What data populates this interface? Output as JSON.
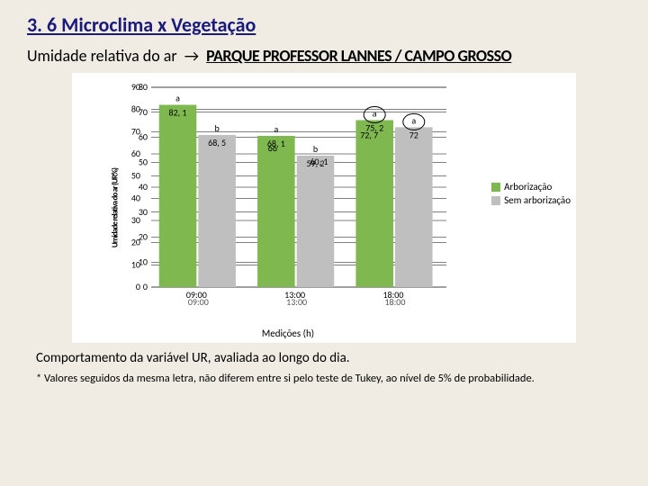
{
  "header": {
    "section": "3. 6  Microclima x Vegetação",
    "variable": "Umidade relativa do ar",
    "arrow": "→",
    "location": "PARQUE PROFESSOR LANNES  /  CAMPO GROSSO"
  },
  "chart": {
    "type": "grouped-bar",
    "ylabel": "Umidade relativa do ar (UR%)",
    "xlabel": "Medições (h)",
    "background_color": "#ffffff",
    "grid_color": "#000000",
    "ylim": [
      0,
      90
    ],
    "ytick_step": 10,
    "yticks_front": [
      0,
      10,
      20,
      30,
      40,
      50,
      60,
      70,
      80,
      90
    ],
    "yticks_back": [
      0,
      10,
      20,
      30,
      40,
      50,
      60,
      70,
      80
    ],
    "categories": [
      "09:00",
      "13:00",
      "18:00"
    ],
    "series": [
      {
        "name": "Arborização",
        "color": "#7fb84f"
      },
      {
        "name": "Sem arborização",
        "color": "#bfbfbf"
      }
    ],
    "groups": [
      {
        "x": "09:00",
        "bars": [
          {
            "series": 0,
            "value": 82.1,
            "letter": "a",
            "label": "82, 1"
          },
          {
            "series": 1,
            "value": 68.5,
            "letter": "b",
            "label": "68, 5"
          }
        ]
      },
      {
        "x": "13:00",
        "bars": [
          {
            "series": 0,
            "value": 68.1,
            "letter": "a",
            "label": "68, 1",
            "overlap_a": 66,
            "overlap_a_label": "66"
          },
          {
            "series": 1,
            "value": 59.2,
            "letter": "b",
            "label": "59, 2",
            "overlap_b": 60.1,
            "overlap_b_label": "60, 1"
          }
        ]
      },
      {
        "x": "18:00",
        "bars": [
          {
            "series": 0,
            "value": 75.2,
            "letter": "a",
            "label": "75, 2",
            "circled": true,
            "alt": 72.7,
            "alt_label": "72, 7"
          },
          {
            "series": 1,
            "value": 72.0,
            "letter": "a",
            "label": "72",
            "circled": true
          }
        ]
      }
    ],
    "bar_width": 0.38,
    "group_gap": 0.18,
    "value_fontsize": 10,
    "letter_fontsize": 10,
    "axis_fontsize": 10
  },
  "caption": "Comportamento da variável UR, avaliada ao longo do dia.",
  "footnote": "* Valores seguidos da mesma letra, não diferem entre si pelo teste de Tukey, ao nível de 5% de probabilidade."
}
